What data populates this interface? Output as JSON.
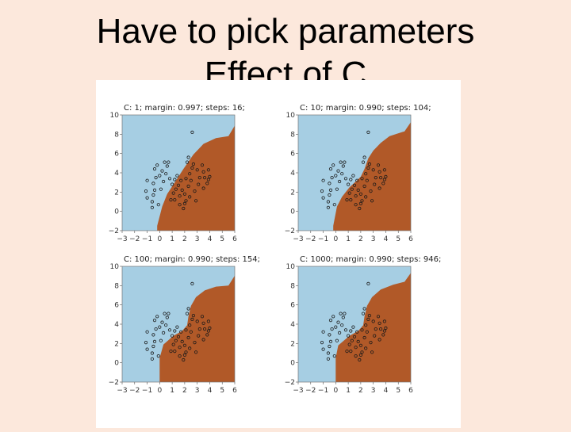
{
  "slide": {
    "title_line1": "Have to pick parameters",
    "title_line2": "Effect of C"
  },
  "colors": {
    "class_a": "#a6cee3",
    "class_b": "#b15928",
    "point_stroke": "#1a1a1a",
    "background": "#fce8dc"
  },
  "chart_data": [
    {
      "type": "scatter",
      "title": "C: 1; margin: 0.997; steps: 16;",
      "xlim": [
        -3,
        6
      ],
      "ylim": [
        -2,
        10
      ],
      "xticks": [
        "−3",
        "−2",
        "−1",
        "0",
        "1",
        "2",
        "3",
        "4",
        "5",
        "6"
      ],
      "yticks": [
        "−2",
        "0",
        "2",
        "4",
        "6",
        "8",
        "10"
      ],
      "boundary": [
        [
          -0.2,
          -1.5
        ],
        [
          0.2,
          0.5
        ],
        [
          0.6,
          1.8
        ],
        [
          1.2,
          3.0
        ],
        [
          1.9,
          4.4
        ],
        [
          2.7,
          5.9
        ],
        [
          3.5,
          7.0
        ],
        [
          4.5,
          7.6
        ],
        [
          5.5,
          7.8
        ]
      ]
    },
    {
      "type": "scatter",
      "title": "C: 10; margin: 0.990; steps: 104;",
      "xlim": [
        -3,
        6
      ],
      "ylim": [
        -2,
        10
      ],
      "xticks": [
        "−3",
        "−2",
        "−1",
        "0",
        "1",
        "2",
        "3",
        "4",
        "5",
        "6"
      ],
      "yticks": [
        "−2",
        "0",
        "2",
        "4",
        "6",
        "8",
        "10"
      ],
      "boundary": [
        [
          -0.2,
          -1.5
        ],
        [
          0.1,
          0.5
        ],
        [
          0.5,
          1.5
        ],
        [
          1.1,
          2.5
        ],
        [
          1.6,
          3.1
        ],
        [
          2.0,
          3.6
        ],
        [
          2.3,
          4.4
        ],
        [
          2.6,
          5.5
        ],
        [
          3.0,
          6.3
        ],
        [
          3.6,
          7.1
        ],
        [
          4.3,
          7.8
        ],
        [
          5.5,
          8.3
        ]
      ]
    },
    {
      "type": "scatter",
      "title": "C: 100; margin: 0.990; steps: 154;",
      "xlim": [
        -3,
        6
      ],
      "ylim": [
        -2,
        10
      ],
      "xticks": [
        "−3",
        "−2",
        "−1",
        "0",
        "1",
        "2",
        "3",
        "4",
        "5",
        "6"
      ],
      "yticks": [
        "−2",
        "0",
        "2",
        "4",
        "6",
        "8",
        "10"
      ],
      "boundary": [
        [
          0.0,
          -1.5
        ],
        [
          0.0,
          0.5
        ],
        [
          0.3,
          1.9
        ],
        [
          1.1,
          2.8
        ],
        [
          1.8,
          3.3
        ],
        [
          2.2,
          3.9
        ],
        [
          2.3,
          4.8
        ],
        [
          2.5,
          5.9
        ],
        [
          2.9,
          6.8
        ],
        [
          3.6,
          7.5
        ],
        [
          4.5,
          7.9
        ],
        [
          5.5,
          8.0
        ]
      ]
    },
    {
      "type": "scatter",
      "title": "C: 1000; margin: 0.990; steps: 946;",
      "xlim": [
        -3,
        6
      ],
      "ylim": [
        -2,
        10
      ],
      "xticks": [
        "−3",
        "−2",
        "−1",
        "0",
        "1",
        "2",
        "3",
        "4",
        "5",
        "6"
      ],
      "yticks": [
        "−2",
        "0",
        "2",
        "4",
        "6",
        "8",
        "10"
      ],
      "boundary": [
        [
          0.0,
          -1.5
        ],
        [
          0.0,
          0.5
        ],
        [
          0.2,
          1.8
        ],
        [
          1.1,
          2.8
        ],
        [
          1.8,
          3.3
        ],
        [
          2.2,
          3.9
        ],
        [
          2.3,
          4.8
        ],
        [
          2.5,
          5.9
        ],
        [
          2.9,
          6.8
        ],
        [
          3.6,
          7.6
        ],
        [
          4.6,
          8.1
        ],
        [
          5.5,
          8.4
        ]
      ]
    }
  ],
  "points": [
    [
      -0.5,
      2.9
    ],
    [
      -0.3,
      3.5
    ],
    [
      0.0,
      3.7
    ],
    [
      0.2,
      4.2
    ],
    [
      -0.4,
      4.4
    ],
    [
      -1.0,
      3.2
    ],
    [
      -1.1,
      2.1
    ],
    [
      -1.0,
      1.4
    ],
    [
      -0.5,
      1.7
    ],
    [
      -0.6,
      1.0
    ],
    [
      -0.6,
      0.4
    ],
    [
      -0.1,
      0.7
    ],
    [
      0.1,
      2.3
    ],
    [
      0.3,
      3.1
    ],
    [
      0.5,
      3.9
    ],
    [
      0.6,
      4.7
    ],
    [
      -0.2,
      4.8
    ],
    [
      0.4,
      5.1
    ],
    [
      0.7,
      5.1
    ],
    [
      0.8,
      3.4
    ],
    [
      1.1,
      1.9
    ],
    [
      1.2,
      1.2
    ],
    [
      1.3,
      2.3
    ],
    [
      1.5,
      2.7
    ],
    [
      1.7,
      3.2
    ],
    [
      1.8,
      2.2
    ],
    [
      1.6,
      0.7
    ],
    [
      1.9,
      0.3
    ],
    [
      2.1,
      1.1
    ],
    [
      2.0,
      1.8
    ],
    [
      2.3,
      2.6
    ],
    [
      2.5,
      3.2
    ],
    [
      2.4,
      3.9
    ],
    [
      2.6,
      4.5
    ],
    [
      2.2,
      5.1
    ],
    [
      2.3,
      5.6
    ],
    [
      2.7,
      4.9
    ],
    [
      3.0,
      4.3
    ],
    [
      3.2,
      3.5
    ],
    [
      3.5,
      4.1
    ],
    [
      3.6,
      3.5
    ],
    [
      3.8,
      2.9
    ],
    [
      3.9,
      3.3
    ],
    [
      3.5,
      2.4
    ],
    [
      3.1,
      2.8
    ],
    [
      2.8,
      2.1
    ],
    [
      2.9,
      1.1
    ],
    [
      3.4,
      4.8
    ],
    [
      3.9,
      4.3
    ],
    [
      4.0,
      3.6
    ],
    [
      2.0,
      0.8
    ],
    [
      1.6,
      1.6
    ],
    [
      1.0,
      2.8
    ],
    [
      1.2,
      3.3
    ],
    [
      2.6,
      8.2
    ],
    [
      -0.4,
      2.2
    ],
    [
      1.4,
      3.7
    ],
    [
      2.1,
      3.4
    ],
    [
      2.4,
      1.5
    ],
    [
      0.9,
      1.2
    ]
  ]
}
